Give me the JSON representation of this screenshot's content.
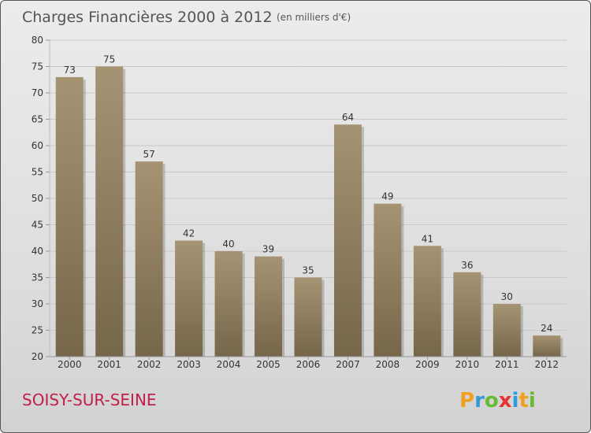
{
  "colors": {
    "bar_light": "#a59473",
    "bar_dark": "#76664a",
    "city": "#c0204a"
  },
  "city_name": "SOISY-SUR-SEINE",
  "logo": {
    "letters": [
      "P",
      "r",
      "o",
      "x",
      "i",
      "t",
      "i"
    ],
    "colors": [
      "#f0a020",
      "#3399dd",
      "#66bb33",
      "#e83030",
      "#3399dd",
      "#f0a020",
      "#66bb33"
    ]
  },
  "chart_data": {
    "type": "bar",
    "title": "Charges Financières 2000 à 2012",
    "subtitle": "(en milliers d'€)",
    "xlabel": "",
    "ylabel": "",
    "categories": [
      "2000",
      "2001",
      "2002",
      "2003",
      "2004",
      "2005",
      "2006",
      "2007",
      "2008",
      "2009",
      "2010",
      "2011",
      "2012"
    ],
    "values": [
      73,
      75,
      57,
      42,
      40,
      39,
      35,
      64,
      49,
      41,
      36,
      30,
      24
    ],
    "ylim": [
      20,
      80
    ],
    "yticks": [
      20,
      25,
      30,
      35,
      40,
      45,
      50,
      55,
      60,
      65,
      70,
      75,
      80
    ],
    "grid": true,
    "legend": "none"
  }
}
